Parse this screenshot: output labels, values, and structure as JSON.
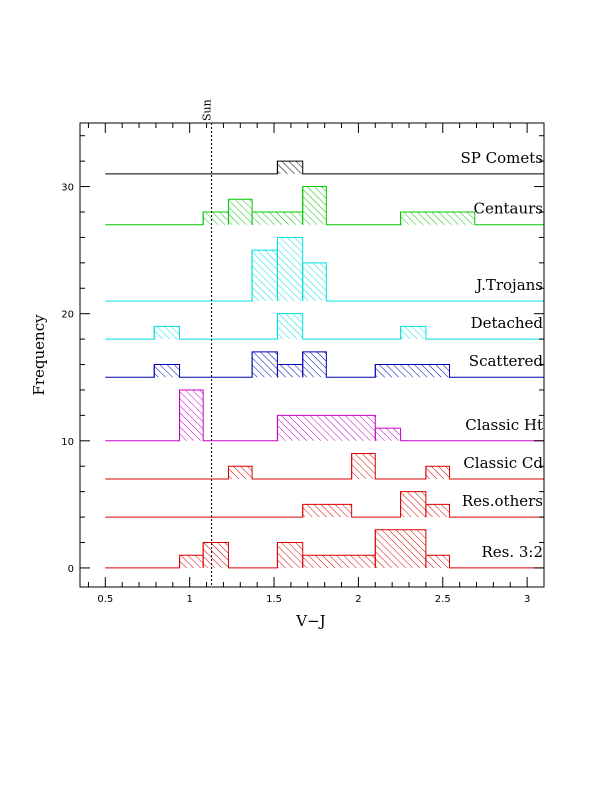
{
  "chart_data": {
    "type": "histogram",
    "xlabel": "V−J",
    "ylabel": "Frequency",
    "xlim": [
      0.35,
      3.1
    ],
    "ylim": [
      -1.5,
      35
    ],
    "x_ticks": [
      "0.5",
      "1",
      "1.5",
      "2",
      "2.5",
      "3"
    ],
    "y_ticks": [
      "0",
      "10",
      "20",
      "30"
    ],
    "bin_width": 0.147,
    "sun_marker": {
      "label": "Sun",
      "x": 1.13
    },
    "series": [
      {
        "name": "SP Comets",
        "baseline": 31,
        "color": "#000000",
        "bins": [
          {
            "x0": 1.52,
            "x1": 1.67,
            "value": 1
          }
        ]
      },
      {
        "name": "Centaurs",
        "baseline": 27,
        "color": "#00c800",
        "bins": [
          {
            "x0": 1.08,
            "x1": 1.23,
            "value": 1
          },
          {
            "x0": 1.23,
            "x1": 1.37,
            "value": 2
          },
          {
            "x0": 1.37,
            "x1": 1.67,
            "value": 1
          },
          {
            "x0": 1.67,
            "x1": 1.81,
            "value": 3
          },
          {
            "x0": 2.25,
            "x1": 2.69,
            "value": 1
          }
        ]
      },
      {
        "name": "J.Trojans",
        "baseline": 21,
        "color": "#00e0e0",
        "bins": [
          {
            "x0": 1.37,
            "x1": 1.52,
            "value": 4
          },
          {
            "x0": 1.52,
            "x1": 1.67,
            "value": 5
          },
          {
            "x0": 1.67,
            "x1": 1.81,
            "value": 3
          }
        ]
      },
      {
        "name": "Detached",
        "baseline": 18,
        "color": "#00e0e0",
        "bins": [
          {
            "x0": 0.79,
            "x1": 0.94,
            "value": 1
          },
          {
            "x0": 1.52,
            "x1": 1.67,
            "value": 2
          },
          {
            "x0": 2.25,
            "x1": 2.4,
            "value": 1
          }
        ]
      },
      {
        "name": "Scattered",
        "baseline": 15,
        "color": "#0000b4",
        "bins": [
          {
            "x0": 0.79,
            "x1": 0.94,
            "value": 1
          },
          {
            "x0": 1.37,
            "x1": 1.52,
            "value": 2
          },
          {
            "x0": 1.52,
            "x1": 1.67,
            "value": 1
          },
          {
            "x0": 1.67,
            "x1": 1.81,
            "value": 2
          },
          {
            "x0": 2.1,
            "x1": 2.54,
            "value": 1
          }
        ]
      },
      {
        "name": "Classic Ht",
        "baseline": 10,
        "color": "#c800c8",
        "bins": [
          {
            "x0": 0.94,
            "x1": 1.08,
            "value": 4
          },
          {
            "x0": 1.52,
            "x1": 2.1,
            "value": 2
          },
          {
            "x0": 2.1,
            "x1": 2.25,
            "value": 1
          }
        ]
      },
      {
        "name": "Classic Cd",
        "baseline": 7,
        "color": "#dc0000",
        "bins": [
          {
            "x0": 1.23,
            "x1": 1.37,
            "value": 1
          },
          {
            "x0": 1.96,
            "x1": 2.1,
            "value": 2
          },
          {
            "x0": 2.4,
            "x1": 2.54,
            "value": 1
          }
        ]
      },
      {
        "name": "Res.others",
        "baseline": 4,
        "color": "#dc0000",
        "bins": [
          {
            "x0": 1.67,
            "x1": 1.96,
            "value": 1
          },
          {
            "x0": 2.25,
            "x1": 2.4,
            "value": 2
          },
          {
            "x0": 2.4,
            "x1": 2.54,
            "value": 1
          }
        ]
      },
      {
        "name": "Res. 3:2",
        "baseline": 0,
        "color": "#dc0000",
        "bins": [
          {
            "x0": 0.94,
            "x1": 1.08,
            "value": 1
          },
          {
            "x0": 1.08,
            "x1": 1.23,
            "value": 2
          },
          {
            "x0": 1.52,
            "x1": 1.67,
            "value": 2
          },
          {
            "x0": 1.67,
            "x1": 2.1,
            "value": 1
          },
          {
            "x0": 2.1,
            "x1": 2.4,
            "value": 3
          },
          {
            "x0": 2.4,
            "x1": 2.54,
            "value": 1
          }
        ]
      }
    ]
  }
}
